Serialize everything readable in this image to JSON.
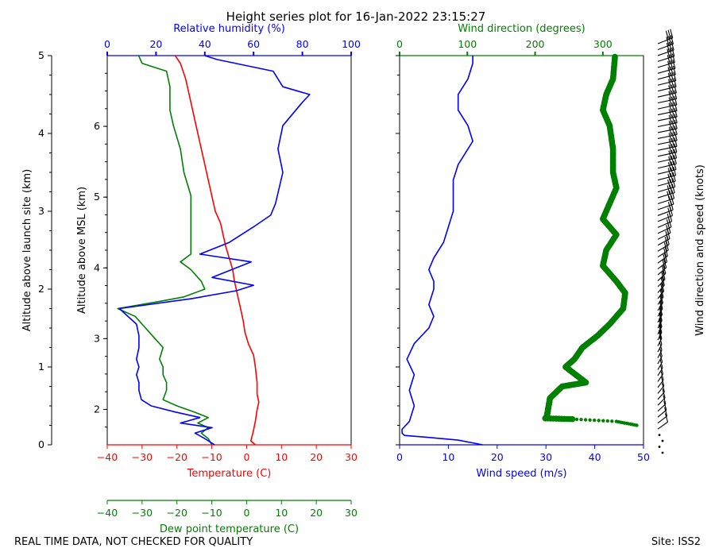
{
  "title": "Height series plot for 16-Jan-2022 23:15:27",
  "footer_left": "REAL TIME DATA, NOT CHECKED FOR QUALITY",
  "footer_right": "Site: ISS2",
  "colors": {
    "temperature": "#ff0000",
    "dewpoint": "#008000",
    "rh": "#0000ff",
    "wdir": "#008000",
    "wspd": "#0000ff",
    "text": "#000000"
  },
  "chart_data": [
    {
      "type": "line",
      "name": "thermo-panel",
      "axes": {
        "bottom": {
          "label": "Temperature (C)",
          "range": [
            -40,
            30
          ],
          "ticks": [
            -40,
            -30,
            -20,
            -10,
            0,
            10,
            20,
            30
          ],
          "color": "#ff0000"
        },
        "bottom2": {
          "label": "Dew point temperature (C)",
          "range": [
            -40,
            30
          ],
          "ticks": [
            -40,
            -30,
            -20,
            -10,
            0,
            10,
            20,
            30
          ],
          "color": "#008000"
        },
        "top": {
          "label": "Relative humidity (%)",
          "range": [
            0,
            100
          ],
          "ticks": [
            0,
            20,
            40,
            60,
            80,
            100
          ],
          "color": "#0000ff"
        },
        "left_outer": {
          "label": "Altitude above launch site (km)",
          "range": [
            0,
            5
          ],
          "ticks": [
            0,
            1,
            2,
            3,
            4,
            5
          ]
        },
        "left_inner": {
          "label": "Altitude above MSL (km)",
          "range": [
            1.5,
            7.0
          ],
          "ticks": [
            2,
            3,
            4,
            5,
            6
          ]
        }
      },
      "series": [
        {
          "name": "Temperature",
          "axis": "bottom",
          "color": "#ff0000",
          "points": [
            [
              2.5,
              0.0
            ],
            [
              1.2,
              0.05
            ],
            [
              1.8,
              0.15
            ],
            [
              2.5,
              0.3
            ],
            [
              3.0,
              0.45
            ],
            [
              3.5,
              0.55
            ],
            [
              3.0,
              0.65
            ],
            [
              3.0,
              0.8
            ],
            [
              2.5,
              1.0
            ],
            [
              2.0,
              1.15
            ],
            [
              0.5,
              1.3
            ],
            [
              -0.5,
              1.45
            ],
            [
              -1.0,
              1.6
            ],
            [
              -2.0,
              1.8
            ],
            [
              -3.0,
              2.0
            ],
            [
              -3.5,
              2.1
            ],
            [
              -4.0,
              2.25
            ],
            [
              -5.0,
              2.4
            ],
            [
              -6.0,
              2.55
            ],
            [
              -7.5,
              2.85
            ],
            [
              -9.0,
              3.0
            ],
            [
              -10.0,
              3.2
            ],
            [
              -11.5,
              3.5
            ],
            [
              -13.0,
              3.8
            ],
            [
              -14.5,
              4.1
            ],
            [
              -16.0,
              4.4
            ],
            [
              -17.5,
              4.7
            ],
            [
              -19.0,
              4.9
            ],
            [
              -20.5,
              5.0
            ]
          ]
        },
        {
          "name": "Dew point",
          "axis": "bottom2",
          "color": "#008000",
          "points": [
            [
              -10,
              0.0
            ],
            [
              -11,
              0.08
            ],
            [
              -13,
              0.15
            ],
            [
              -11,
              0.22
            ],
            [
              -14,
              0.28
            ],
            [
              -11,
              0.35
            ],
            [
              -15,
              0.42
            ],
            [
              -20,
              0.5
            ],
            [
              -24,
              0.58
            ],
            [
              -23,
              0.7
            ],
            [
              -23,
              0.8
            ],
            [
              -24,
              0.9
            ],
            [
              -24,
              1.0
            ],
            [
              -25,
              1.1
            ],
            [
              -24,
              1.25
            ],
            [
              -27,
              1.4
            ],
            [
              -30,
              1.55
            ],
            [
              -32,
              1.65
            ],
            [
              -37,
              1.75
            ],
            [
              -24,
              1.85
            ],
            [
              -18,
              1.9
            ],
            [
              -12,
              2.0
            ],
            [
              -13,
              2.1
            ],
            [
              -16,
              2.25
            ],
            [
              -19,
              2.35
            ],
            [
              -16,
              2.45
            ],
            [
              -16,
              2.65
            ],
            [
              -16,
              2.8
            ],
            [
              -16,
              2.95
            ],
            [
              -16,
              3.2
            ],
            [
              -18,
              3.5
            ],
            [
              -19,
              3.8
            ],
            [
              -21,
              4.1
            ],
            [
              -22,
              4.3
            ],
            [
              -22,
              4.6
            ],
            [
              -23,
              4.8
            ],
            [
              -30,
              4.9
            ],
            [
              -31,
              5.0
            ]
          ]
        },
        {
          "name": "Relative humidity",
          "axis": "top",
          "color": "#0000ff",
          "points": [
            [
              44,
              0.0
            ],
            [
              40,
              0.08
            ],
            [
              36,
              0.15
            ],
            [
              43,
              0.22
            ],
            [
              30,
              0.28
            ],
            [
              38,
              0.35
            ],
            [
              28,
              0.42
            ],
            [
              18,
              0.5
            ],
            [
              14,
              0.58
            ],
            [
              13,
              0.7
            ],
            [
              13,
              0.8
            ],
            [
              12,
              0.9
            ],
            [
              13,
              1.0
            ],
            [
              12,
              1.1
            ],
            [
              13,
              1.25
            ],
            [
              13,
              1.4
            ],
            [
              12,
              1.55
            ],
            [
              5,
              1.75
            ],
            [
              35,
              1.88
            ],
            [
              53,
              1.98
            ],
            [
              60,
              2.05
            ],
            [
              43,
              2.15
            ],
            [
              59,
              2.35
            ],
            [
              38,
              2.45
            ],
            [
              50,
              2.6
            ],
            [
              60,
              2.8
            ],
            [
              67,
              2.95
            ],
            [
              69,
              3.1
            ],
            [
              72,
              3.5
            ],
            [
              70,
              3.8
            ],
            [
              72,
              4.1
            ],
            [
              80,
              4.4
            ],
            [
              83,
              4.5
            ],
            [
              72,
              4.6
            ],
            [
              68,
              4.8
            ],
            [
              45,
              4.95
            ],
            [
              40,
              5.0
            ]
          ]
        }
      ]
    },
    {
      "type": "line",
      "name": "wind-panel",
      "axes": {
        "bottom": {
          "label": "Wind speed (m/s)",
          "range": [
            0,
            50
          ],
          "ticks": [
            0,
            10,
            20,
            30,
            40,
            50
          ],
          "color": "#0000ff"
        },
        "top": {
          "label": "Wind direction (degrees)",
          "range": [
            0,
            360
          ],
          "ticks": [
            0,
            100,
            200,
            300
          ],
          "color": "#008000"
        },
        "left": {
          "range": [
            0,
            5
          ]
        },
        "right_label": "Wind direction and speed (knots)"
      },
      "series": [
        {
          "name": "Wind speed",
          "axis": "bottom",
          "color": "#0000ff",
          "points": [
            [
              17,
              0.0
            ],
            [
              12,
              0.06
            ],
            [
              5,
              0.1
            ],
            [
              1,
              0.12
            ],
            [
              0.5,
              0.15
            ],
            [
              0.5,
              0.2
            ],
            [
              2,
              0.3
            ],
            [
              3,
              0.5
            ],
            [
              2,
              0.7
            ],
            [
              3,
              0.9
            ],
            [
              1.5,
              1.1
            ],
            [
              3,
              1.3
            ],
            [
              6,
              1.5
            ],
            [
              7,
              1.65
            ],
            [
              6,
              1.8
            ],
            [
              7,
              2.0
            ],
            [
              7,
              2.1
            ],
            [
              6,
              2.25
            ],
            [
              7,
              2.4
            ],
            [
              9,
              2.6
            ],
            [
              10,
              2.8
            ],
            [
              11,
              3.0
            ],
            [
              11,
              3.2
            ],
            [
              11,
              3.4
            ],
            [
              12,
              3.6
            ],
            [
              15,
              3.9
            ],
            [
              14,
              4.1
            ],
            [
              12,
              4.3
            ],
            [
              12,
              4.5
            ],
            [
              14,
              4.7
            ],
            [
              15,
              4.9
            ],
            [
              15,
              5.0
            ]
          ]
        },
        {
          "name": "Wind direction",
          "axis": "top",
          "color": "#008000",
          "points": [
            [
              350,
              0.25
            ],
            [
              320,
              0.3
            ],
            [
              255,
              0.33
            ],
            [
              215,
              0.34
            ],
            [
              217,
              0.35
            ],
            [
              218,
              0.4
            ],
            [
              220,
              0.5
            ],
            [
              222,
              0.6
            ],
            [
              240,
              0.75
            ],
            [
              275,
              0.8
            ],
            [
              260,
              0.9
            ],
            [
              245,
              1.0
            ],
            [
              258,
              1.1
            ],
            [
              270,
              1.25
            ],
            [
              292,
              1.4
            ],
            [
              310,
              1.55
            ],
            [
              330,
              1.75
            ],
            [
              333,
              1.95
            ],
            [
              320,
              2.1
            ],
            [
              300,
              2.3
            ],
            [
              305,
              2.5
            ],
            [
              320,
              2.7
            ],
            [
              300,
              2.9
            ],
            [
              310,
              3.1
            ],
            [
              320,
              3.3
            ],
            [
              315,
              3.5
            ],
            [
              315,
              3.8
            ],
            [
              310,
              4.1
            ],
            [
              300,
              4.3
            ],
            [
              305,
              4.5
            ],
            [
              315,
              4.7
            ],
            [
              318,
              5.0
            ]
          ]
        }
      ],
      "barbs_note": "wind barbs along right edge"
    }
  ]
}
